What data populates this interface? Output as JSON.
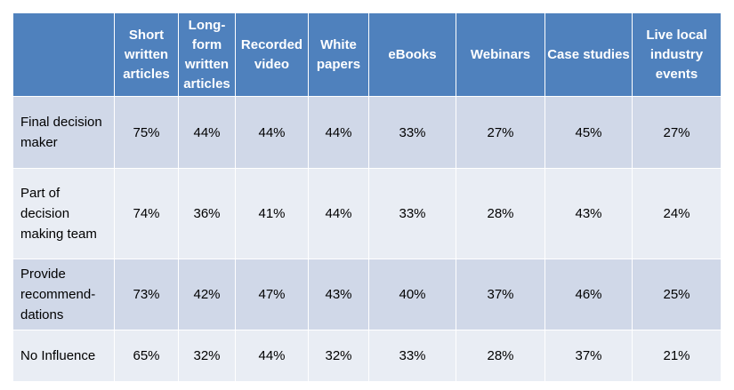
{
  "table": {
    "columns": [
      "Short written articles",
      "Long-form written articles",
      "Recorded video",
      "White papers",
      "eBooks",
      "Webinars",
      "Case studies",
      "Live local industry events"
    ],
    "rows": [
      {
        "label": "Final decision maker",
        "cells": [
          "75%",
          "44%",
          "44%",
          "44%",
          "33%",
          "27%",
          "45%",
          "27%"
        ]
      },
      {
        "label": "Part of decision making team",
        "cells": [
          "74%",
          "36%",
          "41%",
          "44%",
          "33%",
          "28%",
          "43%",
          "24%"
        ]
      },
      {
        "label": "Provide recommend-dations",
        "cells": [
          "73%",
          "42%",
          "47%",
          "43%",
          "40%",
          "37%",
          "46%",
          "25%"
        ]
      },
      {
        "label": "No Influence",
        "cells": [
          "65%",
          "32%",
          "44%",
          "32%",
          "33%",
          "28%",
          "37%",
          "21%"
        ]
      }
    ]
  }
}
